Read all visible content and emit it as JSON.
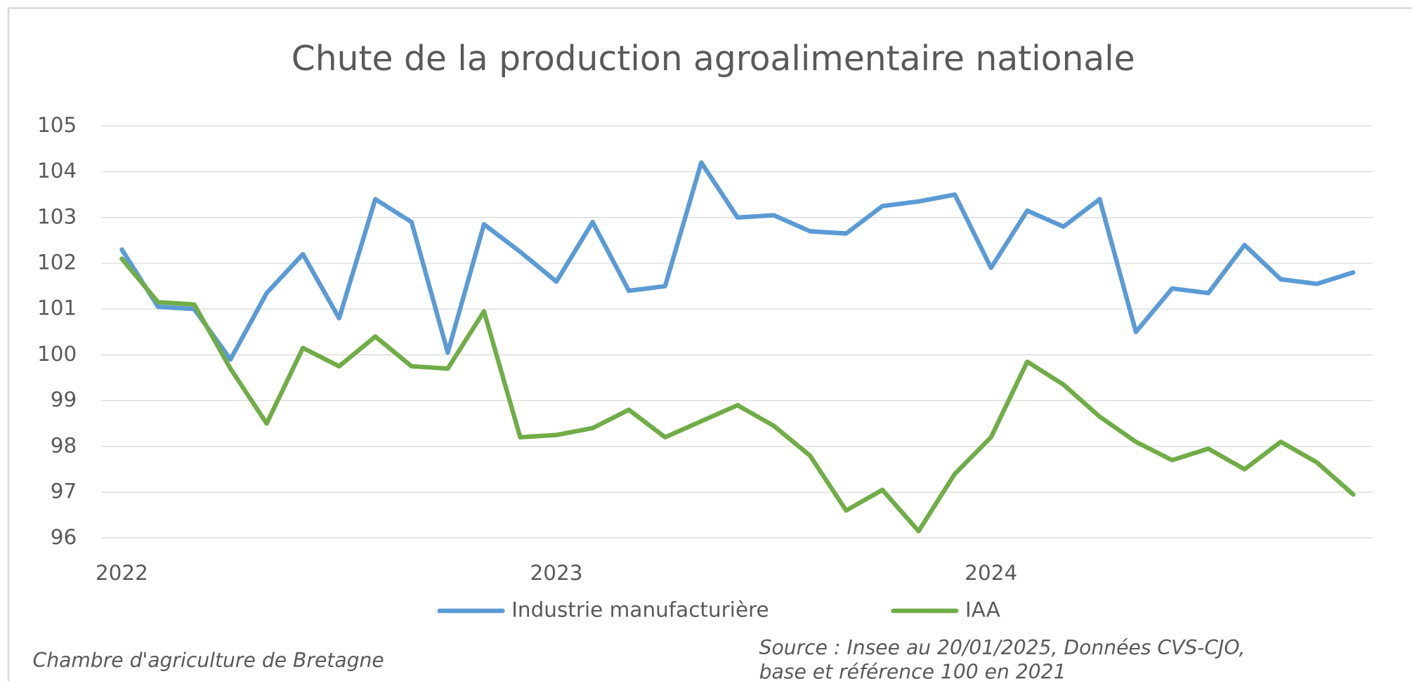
{
  "chart_data": {
    "type": "line",
    "title": "Chute de la production agroalimentaire nationale",
    "categories": [
      "2022",
      null,
      null,
      null,
      null,
      null,
      null,
      null,
      null,
      null,
      null,
      null,
      "2023",
      null,
      null,
      null,
      null,
      null,
      null,
      null,
      null,
      null,
      null,
      null,
      "2024",
      null,
      null,
      null,
      null,
      null,
      null,
      null,
      null,
      null,
      null
    ],
    "series": [
      {
        "name": "Industrie manufacturière",
        "color": "#5b9bd5",
        "values": [
          102.3,
          101.05,
          101.0,
          99.9,
          101.35,
          102.2,
          100.8,
          103.4,
          102.9,
          100.05,
          102.85,
          102.25,
          101.6,
          102.9,
          101.4,
          101.5,
          104.2,
          103.0,
          103.05,
          102.7,
          102.65,
          103.25,
          103.35,
          103.5,
          101.9,
          103.15,
          102.8,
          103.4,
          100.5,
          101.45,
          101.35,
          102.4,
          101.65,
          101.55,
          101.8
        ]
      },
      {
        "name": "IAA",
        "color": "#70ad47",
        "values": [
          102.1,
          101.15,
          101.1,
          99.7,
          98.5,
          100.15,
          99.75,
          100.4,
          99.75,
          99.7,
          100.95,
          98.2,
          98.25,
          98.4,
          98.8,
          98.2,
          98.55,
          98.9,
          98.45,
          97.8,
          96.6,
          97.05,
          96.15,
          97.4,
          98.2,
          99.85,
          99.35,
          98.65,
          98.1,
          97.7,
          97.95,
          97.5,
          98.1,
          97.65,
          96.95
        ]
      }
    ],
    "ylim": [
      96,
      105
    ],
    "yticks": [
      96,
      97,
      98,
      99,
      100,
      101,
      102,
      103,
      104,
      105
    ],
    "grid": true,
    "legend": "bottom",
    "credit": "Chambre d'agriculture de Bretagne",
    "source": [
      "Source : Insee au 20/01/2025, Données CVS-CJO,",
      "base et référence 100 en 2021"
    ]
  }
}
